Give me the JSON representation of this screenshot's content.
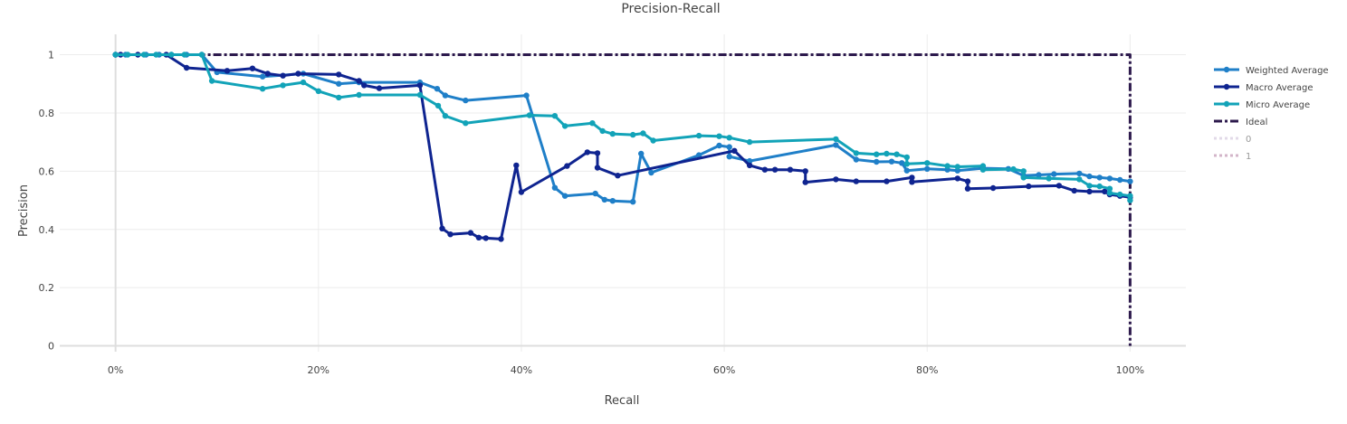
{
  "chart_data": {
    "type": "line",
    "title": "Precision-Recall",
    "xlabel": "Recall",
    "ylabel": "Precision",
    "xlim": [
      -0.055,
      1.055
    ],
    "ylim": [
      -0.02,
      1.07
    ],
    "x_ticks": [
      0,
      0.2,
      0.4,
      0.6,
      0.8,
      1.0
    ],
    "x_tick_labels": [
      "0%",
      "20%",
      "40%",
      "60%",
      "80%",
      "100%"
    ],
    "y_ticks": [
      0,
      0.2,
      0.4,
      0.6,
      0.8,
      1
    ],
    "y_tick_labels": [
      "0",
      "0.2",
      "0.4",
      "0.6",
      "0.8",
      "1"
    ],
    "grid": true,
    "legend_position": "right",
    "series": [
      {
        "name": "Weighted Average",
        "color": "#1f7fc8",
        "style": "solid",
        "markers": true,
        "visible": true,
        "points": [
          [
            0.0,
            1.0
          ],
          [
            0.01,
            1.0
          ],
          [
            0.03,
            1.0
          ],
          [
            0.043,
            1.0
          ],
          [
            0.055,
            1.0
          ],
          [
            0.07,
            1.0
          ],
          [
            0.085,
            1.0
          ],
          [
            0.1,
            0.94
          ],
          [
            0.145,
            0.925
          ],
          [
            0.185,
            0.935
          ],
          [
            0.22,
            0.9
          ],
          [
            0.24,
            0.905
          ],
          [
            0.3,
            0.905
          ],
          [
            0.317,
            0.883
          ],
          [
            0.325,
            0.86
          ],
          [
            0.345,
            0.843
          ],
          [
            0.405,
            0.86
          ],
          [
            0.433,
            0.543
          ],
          [
            0.443,
            0.515
          ],
          [
            0.473,
            0.523
          ],
          [
            0.482,
            0.502
          ],
          [
            0.49,
            0.498
          ],
          [
            0.51,
            0.495
          ],
          [
            0.518,
            0.66
          ],
          [
            0.528,
            0.595
          ],
          [
            0.575,
            0.655
          ],
          [
            0.595,
            0.688
          ],
          [
            0.605,
            0.683
          ],
          [
            0.605,
            0.65
          ],
          [
            0.625,
            0.635
          ],
          [
            0.71,
            0.69
          ],
          [
            0.73,
            0.64
          ],
          [
            0.75,
            0.632
          ],
          [
            0.765,
            0.633
          ],
          [
            0.775,
            0.628
          ],
          [
            0.78,
            0.602
          ],
          [
            0.8,
            0.608
          ],
          [
            0.82,
            0.605
          ],
          [
            0.83,
            0.602
          ],
          [
            0.855,
            0.61
          ],
          [
            0.88,
            0.608
          ],
          [
            0.895,
            0.585
          ],
          [
            0.91,
            0.587
          ],
          [
            0.925,
            0.59
          ],
          [
            0.95,
            0.592
          ],
          [
            0.96,
            0.582
          ],
          [
            0.97,
            0.578
          ],
          [
            0.98,
            0.575
          ],
          [
            0.99,
            0.57
          ],
          [
            1.0,
            0.565
          ]
        ]
      },
      {
        "name": "Macro Average",
        "color": "#0f2490",
        "style": "solid",
        "markers": true,
        "visible": true,
        "points": [
          [
            0.0,
            1.0
          ],
          [
            0.005,
            1.0
          ],
          [
            0.022,
            1.0
          ],
          [
            0.05,
            1.0
          ],
          [
            0.07,
            0.955
          ],
          [
            0.11,
            0.945
          ],
          [
            0.135,
            0.953
          ],
          [
            0.15,
            0.935
          ],
          [
            0.165,
            0.928
          ],
          [
            0.18,
            0.935
          ],
          [
            0.22,
            0.932
          ],
          [
            0.24,
            0.91
          ],
          [
            0.245,
            0.895
          ],
          [
            0.26,
            0.885
          ],
          [
            0.3,
            0.895
          ],
          [
            0.322,
            0.403
          ],
          [
            0.33,
            0.383
          ],
          [
            0.35,
            0.388
          ],
          [
            0.358,
            0.372
          ],
          [
            0.365,
            0.37
          ],
          [
            0.38,
            0.367
          ],
          [
            0.395,
            0.62
          ],
          [
            0.4,
            0.528
          ],
          [
            0.445,
            0.618
          ],
          [
            0.465,
            0.665
          ],
          [
            0.475,
            0.662
          ],
          [
            0.475,
            0.612
          ],
          [
            0.495,
            0.585
          ],
          [
            0.61,
            0.67
          ],
          [
            0.625,
            0.62
          ],
          [
            0.64,
            0.605
          ],
          [
            0.65,
            0.605
          ],
          [
            0.665,
            0.605
          ],
          [
            0.68,
            0.6
          ],
          [
            0.68,
            0.562
          ],
          [
            0.71,
            0.572
          ],
          [
            0.73,
            0.565
          ],
          [
            0.76,
            0.565
          ],
          [
            0.785,
            0.578
          ],
          [
            0.785,
            0.563
          ],
          [
            0.83,
            0.575
          ],
          [
            0.84,
            0.565
          ],
          [
            0.84,
            0.54
          ],
          [
            0.865,
            0.542
          ],
          [
            0.9,
            0.548
          ],
          [
            0.93,
            0.55
          ],
          [
            0.945,
            0.533
          ],
          [
            0.96,
            0.53
          ],
          [
            0.975,
            0.53
          ],
          [
            0.98,
            0.52
          ],
          [
            0.99,
            0.515
          ],
          [
            1.0,
            0.51
          ]
        ]
      },
      {
        "name": "Micro Average",
        "color": "#12a3b8",
        "style": "solid",
        "markers": true,
        "visible": true,
        "points": [
          [
            0.0,
            1.0
          ],
          [
            0.012,
            1.0
          ],
          [
            0.028,
            1.0
          ],
          [
            0.04,
            1.0
          ],
          [
            0.055,
            1.0
          ],
          [
            0.068,
            1.0
          ],
          [
            0.085,
            1.0
          ],
          [
            0.095,
            0.91
          ],
          [
            0.145,
            0.883
          ],
          [
            0.165,
            0.895
          ],
          [
            0.185,
            0.905
          ],
          [
            0.2,
            0.875
          ],
          [
            0.22,
            0.853
          ],
          [
            0.24,
            0.862
          ],
          [
            0.3,
            0.862
          ],
          [
            0.318,
            0.825
          ],
          [
            0.325,
            0.79
          ],
          [
            0.345,
            0.765
          ],
          [
            0.408,
            0.792
          ],
          [
            0.433,
            0.79
          ],
          [
            0.443,
            0.755
          ],
          [
            0.47,
            0.765
          ],
          [
            0.48,
            0.738
          ],
          [
            0.49,
            0.728
          ],
          [
            0.51,
            0.725
          ],
          [
            0.52,
            0.73
          ],
          [
            0.53,
            0.705
          ],
          [
            0.575,
            0.722
          ],
          [
            0.595,
            0.72
          ],
          [
            0.605,
            0.715
          ],
          [
            0.625,
            0.7
          ],
          [
            0.71,
            0.71
          ],
          [
            0.73,
            0.662
          ],
          [
            0.75,
            0.658
          ],
          [
            0.76,
            0.66
          ],
          [
            0.77,
            0.658
          ],
          [
            0.78,
            0.648
          ],
          [
            0.78,
            0.625
          ],
          [
            0.8,
            0.628
          ],
          [
            0.82,
            0.618
          ],
          [
            0.83,
            0.615
          ],
          [
            0.855,
            0.618
          ],
          [
            0.855,
            0.605
          ],
          [
            0.885,
            0.607
          ],
          [
            0.895,
            0.6
          ],
          [
            0.895,
            0.578
          ],
          [
            0.92,
            0.575
          ],
          [
            0.95,
            0.572
          ],
          [
            0.96,
            0.55
          ],
          [
            0.97,
            0.548
          ],
          [
            0.98,
            0.54
          ],
          [
            0.98,
            0.525
          ],
          [
            0.99,
            0.52
          ],
          [
            1.0,
            0.515
          ],
          [
            1.0,
            0.5
          ]
        ]
      },
      {
        "name": "Ideal",
        "color": "#2d1a4d",
        "style": "dashdot",
        "markers": false,
        "visible": true,
        "points": [
          [
            0.0,
            1.0
          ],
          [
            1.0,
            1.0
          ],
          [
            1.0,
            0.0
          ]
        ]
      },
      {
        "name": "0",
        "color": "#cbbdd6",
        "style": "dot",
        "markers": false,
        "visible": false,
        "points": []
      },
      {
        "name": "1",
        "color": "#b07a9e",
        "style": "dot",
        "markers": false,
        "visible": false,
        "points": []
      }
    ]
  }
}
